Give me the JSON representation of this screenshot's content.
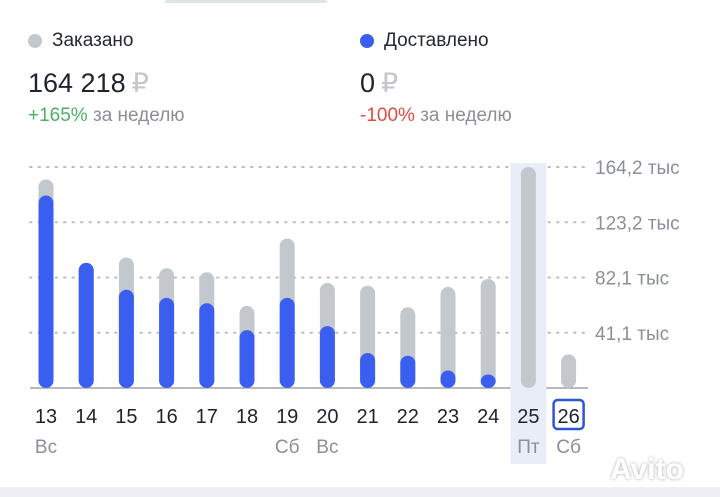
{
  "legend": {
    "ordered": {
      "label": "Заказано",
      "color": "#c3c7ce"
    },
    "delivered": {
      "label": "Доставлено",
      "color": "#3a5ff0"
    }
  },
  "summary": {
    "ordered": {
      "value": "164 218",
      "currency": "₽",
      "change": "+165%",
      "period": "за неделю"
    },
    "delivered": {
      "value": "0",
      "currency": "₽",
      "change": "-100%",
      "period": "за неделю"
    }
  },
  "watermark": "Avito",
  "chart_data": {
    "type": "bar",
    "categories": [
      "13",
      "14",
      "15",
      "16",
      "17",
      "18",
      "19",
      "20",
      "21",
      "22",
      "23",
      "24",
      "25",
      "26"
    ],
    "weekday_labels": [
      "Вс",
      "",
      "",
      "",
      "",
      "",
      "Сб",
      "Вс",
      "",
      "",
      "",
      "",
      "Пт",
      "Сб"
    ],
    "ytick_labels": [
      "41,1 тыс",
      "82,1 тыс",
      "123,2 тыс",
      "164,2 тыс"
    ],
    "yticks": [
      41050,
      82100,
      123150,
      164200
    ],
    "ylim": [
      0,
      164200
    ],
    "series": [
      {
        "name": "Заказано",
        "color": "#c3c7ce",
        "values": [
          155000,
          93000,
          97000,
          89000,
          86000,
          61000,
          111000,
          78000,
          76000,
          60000,
          75000,
          81000,
          164218,
          25000
        ]
      },
      {
        "name": "Доставлено",
        "color": "#3a5ff0",
        "values": [
          143000,
          93000,
          73000,
          67000,
          63000,
          43000,
          67000,
          46000,
          26000,
          24000,
          13000,
          10000,
          0,
          0
        ]
      }
    ],
    "highlighted_category": "25",
    "selected_category": "26",
    "grid": "dotted"
  }
}
